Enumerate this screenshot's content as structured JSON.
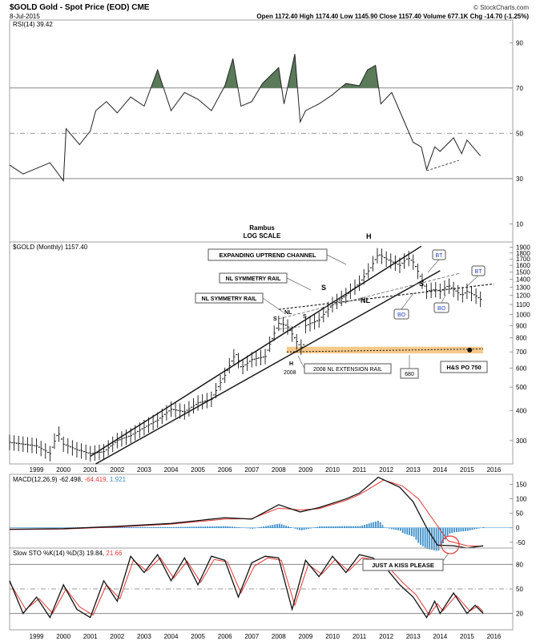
{
  "header": {
    "symbol_title": "$GOLD Gold - Spot Price (EOD) CME",
    "date": "8-Jul-2015",
    "brand": "© StockCharts.com",
    "quote": "Open 1172.40  High 1174.40  Low 1145.90  Close 1157.40  Volume 677.1K  Chg -14.70 (-1.25%)"
  },
  "rsi": {
    "label": "RSI(14) 39.42",
    "ticks": [
      "90",
      "70",
      "50",
      "30",
      "10"
    ],
    "tick_values": [
      90,
      70,
      50,
      30,
      10
    ],
    "range": [
      2,
      100
    ],
    "overbought": 70,
    "oversold": 30,
    "mid": 50,
    "series": [
      [
        1998.0,
        36
      ],
      [
        1998.5,
        32
      ],
      [
        1999.5,
        37
      ],
      [
        2000.0,
        29
      ],
      [
        2000.1,
        52
      ],
      [
        2000.6,
        45
      ],
      [
        2001.0,
        51
      ],
      [
        2001.2,
        60
      ],
      [
        2001.6,
        64
      ],
      [
        2002.0,
        59
      ],
      [
        2002.5,
        66
      ],
      [
        2003.0,
        62
      ],
      [
        2003.5,
        78
      ],
      [
        2004.0,
        60
      ],
      [
        2004.5,
        68
      ],
      [
        2005.0,
        65
      ],
      [
        2005.5,
        60
      ],
      [
        2006.0,
        71
      ],
      [
        2006.3,
        83
      ],
      [
        2006.6,
        62
      ],
      [
        2007.0,
        64
      ],
      [
        2007.4,
        72
      ],
      [
        2008.0,
        79
      ],
      [
        2008.2,
        63
      ],
      [
        2008.6,
        85
      ],
      [
        2008.8,
        55
      ],
      [
        2009.0,
        60
      ],
      [
        2009.5,
        63
      ],
      [
        2010.0,
        67
      ],
      [
        2010.5,
        72
      ],
      [
        2011.0,
        71
      ],
      [
        2011.3,
        78
      ],
      [
        2011.6,
        80
      ],
      [
        2011.8,
        63
      ],
      [
        2012.2,
        68
      ],
      [
        2012.6,
        57
      ],
      [
        2013.0,
        46
      ],
      [
        2013.3,
        44
      ],
      [
        2013.5,
        34
      ],
      [
        2013.8,
        44
      ],
      [
        2014.0,
        42
      ],
      [
        2014.5,
        48
      ],
      [
        2014.8,
        41
      ],
      [
        2015.0,
        47
      ],
      [
        2015.5,
        40
      ]
    ],
    "support_line": [
      [
        2013.5,
        33.5
      ],
      [
        2014.7,
        38
      ]
    ]
  },
  "price": {
    "label": "$GOLD (Monthly) 1157.40",
    "scale": "log",
    "ticks": [
      "1900",
      "1800",
      "1700",
      "1600",
      "1500",
      "1400",
      "1300",
      "1200",
      "1100",
      "1000",
      "900",
      "800",
      "700",
      "600",
      "500",
      "400",
      "300"
    ],
    "tick_values": [
      1900,
      1800,
      1700,
      1600,
      1500,
      1400,
      1300,
      1200,
      1100,
      1000,
      900,
      800,
      700,
      600,
      500,
      400,
      300
    ],
    "range": [
      240,
      2000
    ],
    "series": [
      [
        1998.0,
        295
      ],
      [
        1998.5,
        290
      ],
      [
        1999.0,
        285
      ],
      [
        1999.5,
        265
      ],
      [
        1999.8,
        325
      ],
      [
        2000.0,
        290
      ],
      [
        2000.5,
        275
      ],
      [
        2001.0,
        265
      ],
      [
        2001.5,
        270
      ],
      [
        2002.0,
        300
      ],
      [
        2002.5,
        315
      ],
      [
        2003.0,
        340
      ],
      [
        2003.5,
        365
      ],
      [
        2004.0,
        405
      ],
      [
        2004.5,
        395
      ],
      [
        2005.0,
        430
      ],
      [
        2005.5,
        445
      ],
      [
        2006.0,
        560
      ],
      [
        2006.4,
        690
      ],
      [
        2006.6,
        600
      ],
      [
        2007.0,
        650
      ],
      [
        2007.5,
        670
      ],
      [
        2008.0,
        920
      ],
      [
        2008.3,
        900
      ],
      [
        2008.7,
        760
      ],
      [
        2008.9,
        720
      ],
      [
        2009.0,
        900
      ],
      [
        2009.5,
        950
      ],
      [
        2010.0,
        1100
      ],
      [
        2010.5,
        1200
      ],
      [
        2011.0,
        1350
      ],
      [
        2011.4,
        1550
      ],
      [
        2011.7,
        1780
      ],
      [
        2012.0,
        1700
      ],
      [
        2012.5,
        1600
      ],
      [
        2012.8,
        1720
      ],
      [
        2013.0,
        1650
      ],
      [
        2013.3,
        1400
      ],
      [
        2013.5,
        1250
      ],
      [
        2013.8,
        1270
      ],
      [
        2014.0,
        1250
      ],
      [
        2014.3,
        1320
      ],
      [
        2014.8,
        1200
      ],
      [
        2015.0,
        1250
      ],
      [
        2015.3,
        1200
      ],
      [
        2015.5,
        1157
      ]
    ],
    "lines": [
      {
        "from": [
          2001.0,
          258
        ],
        "to": [
          2013.3,
          1920
        ]
      },
      {
        "from": [
          2001.2,
          240
        ],
        "to": [
          2014.0,
          1520
        ]
      },
      {
        "from": [
          2008.0,
          1050
        ],
        "to": [
          2016.0,
          1340
        ]
      },
      {
        "from": [
          2008.0,
          960
        ],
        "to": [
          2014.7,
          1480
        ]
      },
      {
        "from": [
          2008.0,
          870
        ],
        "to": [
          2008.8,
          890
        ]
      },
      {
        "from": [
          2008.3,
          700
        ],
        "to": [
          2015.6,
          720
        ]
      }
    ],
    "zone": [
      2008.3,
      2015.6,
      690,
      735
    ],
    "annotations": {
      "rambus": "Rambus",
      "log_scale": "LOG SCALE",
      "channel": "EXPANDING UPTREND CHANNEL",
      "nl_sym_1": "NL SYMMETRY RAIL",
      "nl_sym_2": "NL SYMMETRY RAIL",
      "s1": "S",
      "s2": "S",
      "s3": "S",
      "s4": "S",
      "nl1": "NL",
      "nl2": "NL",
      "h1": "H",
      "h2": "H",
      "year_2008": "2008",
      "extension": "2008 NL EXTENSION RAIL",
      "p680": "680",
      "hs_po": "H&S PO 750",
      "bt1": "BT",
      "bt2": "BT",
      "bo1": "BO",
      "bo2": "BO"
    }
  },
  "years": [
    "1999",
    "2000",
    "2001",
    "2002",
    "2003",
    "2004",
    "2005",
    "2006",
    "2007",
    "2008",
    "2009",
    "2010",
    "2011",
    "2012",
    "2013",
    "2014",
    "2015",
    "2016"
  ],
  "macd": {
    "label": "MACD(12,26,9)",
    "v1": "-62.498,",
    "v2": "-64.419,",
    "v3": "1.921",
    "ticks": [
      "150",
      "100",
      "50",
      "0",
      "-50"
    ],
    "tick_values": [
      150,
      100,
      50,
      0,
      -50
    ],
    "range": [
      -70,
      185
    ],
    "macd_line": [
      [
        1998.0,
        -5
      ],
      [
        2000.0,
        -3
      ],
      [
        2002.0,
        5
      ],
      [
        2004.0,
        15
      ],
      [
        2006.0,
        35
      ],
      [
        2007.0,
        30
      ],
      [
        2008.0,
        80
      ],
      [
        2008.8,
        55
      ],
      [
        2009.5,
        70
      ],
      [
        2010.5,
        100
      ],
      [
        2011.0,
        120
      ],
      [
        2011.7,
        175
      ],
      [
        2012.5,
        140
      ],
      [
        2013.0,
        90
      ],
      [
        2013.5,
        0
      ],
      [
        2013.9,
        -60
      ],
      [
        2014.5,
        -62
      ],
      [
        2015.0,
        -70
      ],
      [
        2015.6,
        -62
      ]
    ],
    "signal_line": [
      [
        1998.0,
        -6
      ],
      [
        2000.0,
        -4
      ],
      [
        2002.0,
        3
      ],
      [
        2004.0,
        13
      ],
      [
        2006.0,
        30
      ],
      [
        2007.0,
        32
      ],
      [
        2008.0,
        68
      ],
      [
        2008.8,
        62
      ],
      [
        2009.5,
        66
      ],
      [
        2010.5,
        95
      ],
      [
        2011.0,
        115
      ],
      [
        2011.9,
        165
      ],
      [
        2012.6,
        145
      ],
      [
        2013.2,
        100
      ],
      [
        2013.8,
        20
      ],
      [
        2014.3,
        -45
      ],
      [
        2015.0,
        -62
      ],
      [
        2015.6,
        -64
      ]
    ],
    "annotation": "JUST A KISS PLEASE"
  },
  "sto": {
    "label": "Slow STO %K(14) %D(3)",
    "k": "19.84,",
    "d": "21.66",
    "ticks": [
      "80",
      "50",
      "20"
    ],
    "tick_values": [
      80,
      50,
      20
    ],
    "range": [
      0,
      100
    ],
    "k_line": [
      [
        1998.0,
        60
      ],
      [
        1998.5,
        20
      ],
      [
        1999.0,
        40
      ],
      [
        1999.5,
        15
      ],
      [
        2000.0,
        55
      ],
      [
        2000.5,
        25
      ],
      [
        2001.0,
        15
      ],
      [
        2001.5,
        60
      ],
      [
        2002.0,
        35
      ],
      [
        2002.5,
        90
      ],
      [
        2003.0,
        70
      ],
      [
        2003.5,
        92
      ],
      [
        2004.0,
        60
      ],
      [
        2004.5,
        88
      ],
      [
        2005.0,
        55
      ],
      [
        2005.5,
        90
      ],
      [
        2006.0,
        85
      ],
      [
        2006.5,
        40
      ],
      [
        2007.0,
        82
      ],
      [
        2007.5,
        90
      ],
      [
        2008.0,
        88
      ],
      [
        2008.5,
        25
      ],
      [
        2009.0,
        85
      ],
      [
        2009.5,
        65
      ],
      [
        2010.0,
        90
      ],
      [
        2010.5,
        70
      ],
      [
        2011.0,
        92
      ],
      [
        2011.5,
        88
      ],
      [
        2012.0,
        75
      ],
      [
        2012.5,
        55
      ],
      [
        2013.0,
        40
      ],
      [
        2013.5,
        15
      ],
      [
        2013.8,
        35
      ],
      [
        2014.0,
        20
      ],
      [
        2014.5,
        45
      ],
      [
        2015.0,
        20
      ],
      [
        2015.3,
        30
      ],
      [
        2015.6,
        20
      ]
    ],
    "d_line": [
      [
        1998.0,
        58
      ],
      [
        1998.6,
        25
      ],
      [
        1999.1,
        38
      ],
      [
        1999.6,
        20
      ],
      [
        2000.1,
        50
      ],
      [
        2000.6,
        28
      ],
      [
        2001.1,
        18
      ],
      [
        2001.6,
        55
      ],
      [
        2002.1,
        38
      ],
      [
        2002.6,
        85
      ],
      [
        2003.1,
        72
      ],
      [
        2003.6,
        88
      ],
      [
        2004.1,
        63
      ],
      [
        2004.6,
        84
      ],
      [
        2005.1,
        58
      ],
      [
        2005.6,
        86
      ],
      [
        2006.1,
        83
      ],
      [
        2006.6,
        45
      ],
      [
        2007.1,
        78
      ],
      [
        2007.6,
        88
      ],
      [
        2008.1,
        85
      ],
      [
        2008.6,
        30
      ],
      [
        2009.1,
        80
      ],
      [
        2009.6,
        68
      ],
      [
        2010.1,
        86
      ],
      [
        2010.6,
        72
      ],
      [
        2011.1,
        88
      ],
      [
        2011.6,
        86
      ],
      [
        2012.1,
        76
      ],
      [
        2012.6,
        58
      ],
      [
        2013.1,
        43
      ],
      [
        2013.6,
        18
      ],
      [
        2013.9,
        32
      ],
      [
        2014.1,
        23
      ],
      [
        2014.6,
        42
      ],
      [
        2015.1,
        23
      ],
      [
        2015.4,
        29
      ],
      [
        2015.6,
        22
      ]
    ]
  },
  "colors": {
    "rsi_fill": "#5a7a5a",
    "zone": "#f5c98a",
    "macd_signal": "#e53935",
    "hist": "#3c8fc9",
    "label_blue": "#1f3fbf",
    "kiss_circle": "#e53935",
    "panel_border": "#a0a0a0",
    "grid": "#c8c8c8"
  }
}
